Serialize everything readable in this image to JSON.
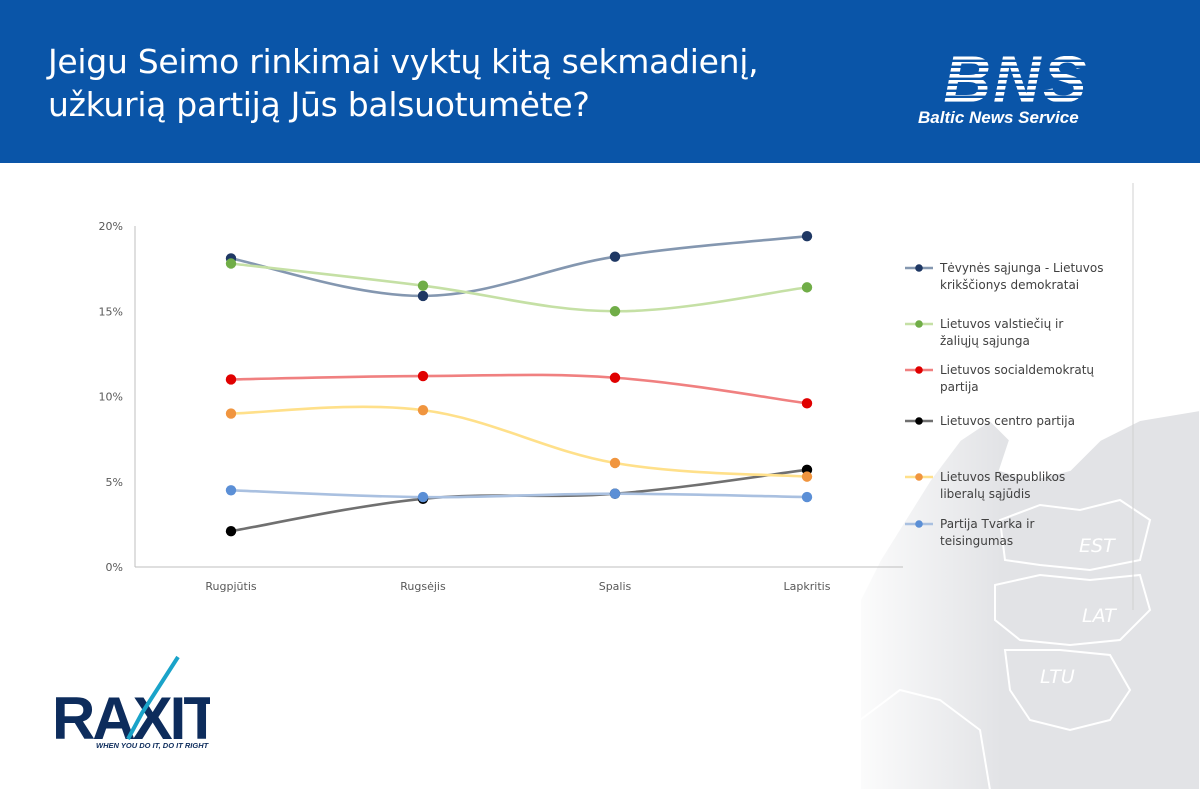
{
  "header": {
    "title_lines": [
      "Jeigu Seimo rinkimai vyktų kitą sekmadienį,",
      "užkurią partiją Jūs balsuotumėte?"
    ],
    "logo_caption": "Baltic News Service",
    "background_color": "#0a55a8"
  },
  "branding": {
    "bns_logo_text": "BNS",
    "raxit_logo_text": "RAXIT",
    "raxit_tagline": "WHEN YOU DO IT, DO IT RIGHT"
  },
  "map": {
    "labels": [
      "EST",
      "LAT",
      "LTU"
    ]
  },
  "chart_data": {
    "type": "line",
    "smooth": true,
    "categories": [
      "Rugpjūtis",
      "Rugsėjis",
      "Spalis",
      "Lapkritis"
    ],
    "yticks": [
      "0%",
      "5%",
      "10%",
      "15%",
      "20%"
    ],
    "ylim": [
      0,
      20
    ],
    "y_unit": "%",
    "grid": false,
    "legend_position": "right",
    "series": [
      {
        "name": "Tėvynės sąjunga - Lietuvos krikščionys demokratai",
        "values": [
          18.1,
          15.9,
          18.2,
          19.4
        ],
        "line_color": "#8497b0",
        "marker_color": "#1f3864"
      },
      {
        "name": "Lietuvos valstiečių ir žaliųjų sąjunga",
        "values": [
          17.8,
          16.5,
          15.0,
          16.4
        ],
        "line_color": "#c5e0a5",
        "marker_color": "#70ad47"
      },
      {
        "name": "Lietuvos socialdemokratų partija",
        "values": [
          11.0,
          11.2,
          11.1,
          9.6
        ],
        "line_color": "#f08080",
        "marker_color": "#e00000"
      },
      {
        "name": "Lietuvos centro partija",
        "values": [
          2.1,
          4.0,
          4.3,
          5.7
        ],
        "line_color": "#707070",
        "marker_color": "#000000"
      },
      {
        "name": "Lietuvos Respublikos liberalų sąjūdis",
        "values": [
          9.0,
          9.2,
          6.1,
          5.3
        ],
        "line_color": "#ffe08a",
        "marker_color": "#f0953f"
      },
      {
        "name": "Partija Tvarka ir teisingumas",
        "values": [
          4.5,
          4.1,
          4.3,
          4.1
        ],
        "line_color": "#a9c0e0",
        "marker_color": "#5b8fd6"
      }
    ]
  }
}
